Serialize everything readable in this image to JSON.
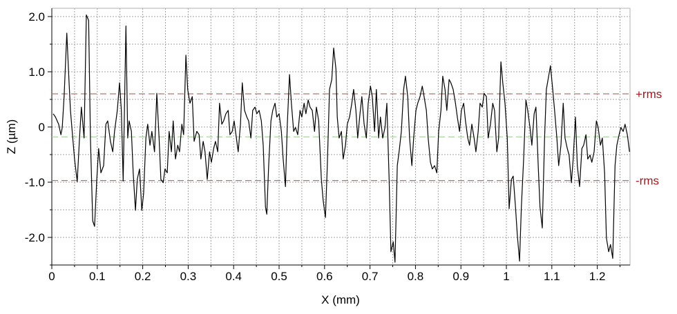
{
  "chart_data": {
    "type": "line",
    "x_label": "X (mm)",
    "y_label": "Z (µm)",
    "xlim": [
      0,
      1.272
    ],
    "ylim": [
      -2.5,
      2.15
    ],
    "xticks": [
      0,
      0.1,
      0.2,
      0.3,
      0.4,
      0.5,
      0.6,
      0.7,
      0.8,
      0.9,
      1,
      1.1,
      1.2
    ],
    "x_minor_ticks": [
      0.05,
      0.15,
      0.25,
      0.35,
      0.45,
      0.55,
      0.65,
      0.75,
      0.85,
      0.95,
      1.05,
      1.15,
      1.25
    ],
    "yticks": [
      {
        "value": 2,
        "label": "2.0"
      },
      {
        "value": 1,
        "label": "1.0"
      },
      0,
      {
        "value": -1,
        "label": "-1.0"
      },
      {
        "value": -2,
        "label": "-2.0"
      }
    ],
    "y_minor_ticks": [
      1.5,
      0.5,
      -0.5,
      -1.5,
      -2.5
    ],
    "grid": true,
    "reference_lines": [
      {
        "label": "+rms",
        "value": 0.6,
        "color": "#b3756b",
        "label_color": "#a3161c"
      },
      {
        "value": -0.18,
        "color": "#a9d4a0"
      },
      {
        "label": "-rms",
        "value": -0.97,
        "color": "#b3756b",
        "label_color": "#a3161c"
      }
    ],
    "series": [
      {
        "color": "#000000",
        "x": [
          0.003,
          0.008,
          0.015,
          0.02,
          0.023,
          0.027,
          0.033,
          0.038,
          0.041,
          0.046,
          0.05,
          0.056,
          0.061,
          0.065,
          0.071,
          0.076,
          0.081,
          0.085,
          0.09,
          0.094,
          0.099,
          0.103,
          0.108,
          0.114,
          0.119,
          0.123,
          0.129,
          0.134,
          0.138,
          0.144,
          0.149,
          0.153,
          0.157,
          0.163,
          0.167,
          0.17,
          0.175,
          0.179,
          0.184,
          0.188,
          0.193,
          0.198,
          0.202,
          0.207,
          0.211,
          0.216,
          0.22,
          0.226,
          0.231,
          0.236,
          0.24,
          0.245,
          0.249,
          0.254,
          0.258,
          0.263,
          0.267,
          0.272,
          0.277,
          0.281,
          0.286,
          0.29,
          0.295,
          0.299,
          0.304,
          0.309,
          0.313,
          0.319,
          0.324,
          0.328,
          0.333,
          0.337,
          0.342,
          0.347,
          0.351,
          0.356,
          0.36,
          0.365,
          0.369,
          0.374,
          0.378,
          0.383,
          0.388,
          0.392,
          0.397,
          0.401,
          0.406,
          0.41,
          0.415,
          0.419,
          0.424,
          0.429,
          0.433,
          0.438,
          0.442,
          0.447,
          0.451,
          0.456,
          0.461,
          0.465,
          0.47,
          0.473,
          0.477,
          0.482,
          0.486,
          0.491,
          0.495,
          0.5,
          0.505,
          0.509,
          0.514,
          0.518,
          0.523,
          0.527,
          0.532,
          0.536,
          0.541,
          0.546,
          0.55,
          0.555,
          0.559,
          0.564,
          0.568,
          0.573,
          0.578,
          0.582,
          0.587,
          0.593,
          0.597,
          0.602,
          0.606,
          0.611,
          0.616,
          0.62,
          0.625,
          0.628,
          0.632,
          0.637,
          0.641,
          0.646,
          0.65,
          0.655,
          0.66,
          0.664,
          0.669,
          0.673,
          0.678,
          0.682,
          0.687,
          0.692,
          0.696,
          0.701,
          0.705,
          0.71,
          0.714,
          0.719,
          0.723,
          0.728,
          0.733,
          0.737,
          0.742,
          0.746,
          0.751,
          0.755,
          0.76,
          0.764,
          0.769,
          0.774,
          0.778,
          0.783,
          0.787,
          0.792,
          0.796,
          0.801,
          0.805,
          0.81,
          0.815,
          0.819,
          0.824,
          0.828,
          0.833,
          0.837,
          0.842,
          0.847,
          0.851,
          0.856,
          0.86,
          0.865,
          0.869,
          0.874,
          0.878,
          0.883,
          0.888,
          0.892,
          0.897,
          0.901,
          0.906,
          0.91,
          0.915,
          0.919,
          0.924,
          0.929,
          0.933,
          0.938,
          0.942,
          0.947,
          0.951,
          0.956,
          0.96,
          0.965,
          0.97,
          0.974,
          0.979,
          0.983,
          0.988,
          0.992,
          0.997,
          1.002,
          1.006,
          1.011,
          1.015,
          1.02,
          1.024,
          1.029,
          1.033,
          1.038,
          1.043,
          1.047,
          1.052,
          1.056,
          1.061,
          1.065,
          1.07,
          1.074,
          1.079,
          1.084,
          1.088,
          1.093,
          1.097,
          1.102,
          1.106,
          1.111,
          1.115,
          1.12,
          1.125,
          1.129,
          1.134,
          1.138,
          1.143,
          1.147,
          1.152,
          1.156,
          1.161,
          1.166,
          1.17,
          1.175,
          1.179,
          1.184,
          1.188,
          1.193,
          1.198,
          1.202,
          1.207,
          1.211,
          1.216,
          1.22,
          1.225,
          1.229,
          1.234,
          1.239,
          1.243,
          1.248,
          1.252,
          1.257,
          1.261,
          1.266,
          1.271
        ],
        "values": [
          0.24,
          0.18,
          0.05,
          -0.14,
          -0.01,
          0.55,
          1.7,
          0.8,
          0.3,
          -0.2,
          -0.58,
          -0.99,
          -0.2,
          0.36,
          -0.2,
          2.03,
          1.93,
          -0.2,
          -1.7,
          -1.8,
          -0.95,
          -0.39,
          -0.83,
          -0.7,
          0.05,
          0.11,
          -0.26,
          -0.45,
          -0.08,
          0.3,
          0.8,
          0.3,
          -0.98,
          1.83,
          -0.2,
          0.11,
          -0.08,
          -0.83,
          -1.51,
          -0.95,
          -0.76,
          -1.51,
          -1.2,
          -0.2,
          0.05,
          -0.33,
          -0.08,
          -0.45,
          0.61,
          -0.2,
          -0.95,
          -1.01,
          -0.76,
          -0.83,
          -0.08,
          -0.45,
          0.11,
          -0.58,
          -0.33,
          -0.45,
          0.05,
          -0.14,
          1.3,
          0.68,
          0.43,
          0.55,
          -0.26,
          -0.08,
          -0.14,
          -0.58,
          -0.26,
          -0.45,
          -0.95,
          -0.45,
          -0.64,
          -0.39,
          -0.26,
          -0.45,
          0.43,
          0.05,
          0.11,
          0.24,
          0.3,
          -0.14,
          -0.08,
          0.11,
          -0.2,
          -0.45,
          0.05,
          0.8,
          0.3,
          0.18,
          0.11,
          -0.2,
          0.3,
          0.36,
          0.24,
          0.3,
          0.11,
          -0.33,
          -1.45,
          -1.58,
          -0.7,
          0.11,
          0.3,
          0.43,
          0.18,
          0.24,
          -0.08,
          -0.58,
          -1.08,
          0.05,
          0.95,
          0.43,
          -0.08,
          -0.01,
          -0.14,
          0.3,
          0.18,
          0.43,
          0.24,
          0.49,
          0.36,
          0.3,
          -0.08,
          0.36,
          0.11,
          -0.95,
          -1.33,
          -1.64,
          -0.7,
          0.68,
          0.86,
          1.43,
          1.05,
          0.18,
          -0.2,
          -0.08,
          -0.58,
          -0.33,
          0.05,
          0.18,
          0.43,
          0.68,
          0.3,
          -0.2,
          0.24,
          0.55,
          0.05,
          -0.2,
          0.43,
          0.74,
          0.55,
          -0.08,
          0.68,
          -0.2,
          0.18,
          -0.2,
          -0.01,
          0.43,
          -0.95,
          -2.26,
          -2.08,
          -2.45,
          -0.7,
          -0.45,
          -0.08,
          0.68,
          0.92,
          0.55,
          -0.2,
          -0.7,
          -0.2,
          0.3,
          0.43,
          0.55,
          0.74,
          0.55,
          0.3,
          -0.2,
          -0.64,
          -0.76,
          -0.7,
          -0.83,
          -0.08,
          0.3,
          0.92,
          0.68,
          0.3,
          0.86,
          0.8,
          0.68,
          0.43,
          0.18,
          -0.08,
          0.3,
          0.43,
          0.11,
          -0.2,
          -0.33,
          0.05,
          -0.2,
          -0.45,
          -0.08,
          0.43,
          0.36,
          0.61,
          0.55,
          -0.2,
          0.05,
          0.43,
          0.3,
          -0.45,
          -0.2,
          1.18,
          0.8,
          0.43,
          -0.2,
          -1.48,
          -0.95,
          -0.89,
          -1.45,
          -1.95,
          -2.43,
          -1.45,
          -0.58,
          0.49,
          0.3,
          -0.01,
          -0.33,
          0.24,
          0.36,
          -0.7,
          -1.45,
          -1.83,
          -0.2,
          0.68,
          0.92,
          1.11,
          0.68,
          0.3,
          -0.2,
          -0.7,
          -0.33,
          0.43,
          -0.2,
          -0.39,
          -0.51,
          -1.01,
          -0.58,
          0.18,
          -0.7,
          -1.08,
          -0.39,
          -0.33,
          -0.14,
          -0.58,
          -0.51,
          -0.64,
          -0.45,
          0.11,
          -0.01,
          -0.33,
          -0.2,
          -0.83,
          -2.01,
          -2.26,
          -2.13,
          -2.38,
          -0.7,
          -0.33,
          -0.14,
          -0.01,
          -0.08,
          0.05,
          -0.14,
          -0.45
        ]
      }
    ]
  }
}
